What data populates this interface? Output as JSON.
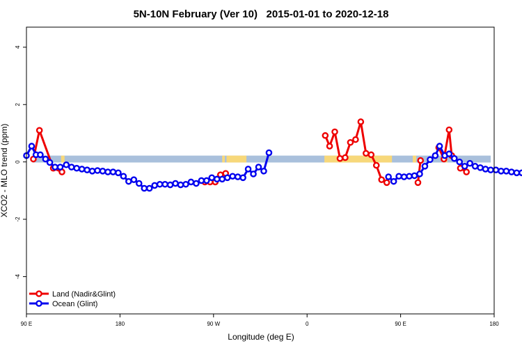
{
  "chart_data": {
    "type": "line",
    "title": "5N-10N February (Ver 10)   2015-01-01 to 2020-12-18",
    "xlabel": "Longitude (deg E)",
    "ylabel": "XCO2 - MLO trend (ppm)",
    "xlim": [
      -90,
      180
    ],
    "ylim": [
      -5.3,
      4.7
    ],
    "x_ticks": [
      -90,
      -36,
      18,
      72,
      126,
      180
    ],
    "x_tick_labels": [
      "90 E",
      "180",
      "90 W",
      "0",
      "90 E",
      "180"
    ],
    "y_ticks": [
      -4,
      -2,
      0,
      2,
      4
    ],
    "y_tick_labels": [
      "-4",
      "-2",
      "0",
      "2",
      "4"
    ],
    "grid": false,
    "legend_position": "bottom-left",
    "colors": {
      "land": "#ee0000",
      "ocean": "#0000ee",
      "ocean_band": "#a9c0dc",
      "land_band": "#f7d87a"
    },
    "land_band_segments": [
      [
        -70,
        -68
      ],
      [
        23,
        24.5
      ],
      [
        25.5,
        37
      ],
      [
        82,
        121
      ],
      [
        133,
        135
      ],
      [
        152,
        153
      ]
    ],
    "series": [
      {
        "name": "Land (Nadir&Glint)",
        "color": "#ee0000",
        "segments": [
          [
            [
              -86,
              0.1
            ],
            [
              -82.5,
              1.1
            ],
            [
              -74.5,
              -0.22
            ],
            [
              -69.5,
              -0.35
            ]
          ],
          [
            [
              13,
              -0.7
            ],
            [
              16,
              -0.7
            ],
            [
              19,
              -0.7
            ],
            [
              22,
              -0.45
            ],
            [
              25,
              -0.4
            ]
          ],
          [
            [
              82.5,
              0.92
            ],
            [
              85,
              0.55
            ],
            [
              88,
              1.05
            ],
            [
              91,
              0.12
            ],
            [
              94,
              0.15
            ],
            [
              97,
              0.68
            ],
            [
              100,
              0.78
            ],
            [
              103,
              1.4
            ],
            [
              106,
              0.3
            ],
            [
              109,
              0.25
            ],
            [
              112,
              -0.12
            ],
            [
              115,
              -0.62
            ],
            [
              118,
              -0.72
            ]
          ],
          [
            [
              136,
              -0.72
            ],
            [
              137.5,
              0.05
            ]
          ],
          [
            [
              148,
              0.5
            ],
            [
              151,
              0.1
            ],
            [
              154,
              1.12
            ],
            [
              155.5,
              0.22
            ]
          ],
          [
            [
              160.5,
              -0.22
            ],
            [
              164,
              -0.35
            ]
          ]
        ]
      },
      {
        "name": "Ocean (Glint)",
        "color": "#0000ee",
        "segments": [
          [
            [
              -90,
              0.22
            ],
            [
              -87,
              0.55
            ],
            [
              -84.5,
              0.25
            ],
            [
              -82,
              0.25
            ],
            [
              -79,
              0.1
            ],
            [
              -76.5,
              -0.02
            ],
            [
              -73.5,
              -0.18
            ],
            [
              -70.5,
              -0.18
            ],
            [
              -67,
              -0.1
            ],
            [
              -64,
              -0.18
            ],
            [
              -61,
              -0.22
            ],
            [
              -58,
              -0.25
            ],
            [
              -55,
              -0.28
            ],
            [
              -52,
              -0.32
            ],
            [
              -49,
              -0.3
            ],
            [
              -46,
              -0.32
            ],
            [
              -43,
              -0.35
            ],
            [
              -40,
              -0.35
            ],
            [
              -37,
              -0.38
            ],
            [
              -34,
              -0.5
            ],
            [
              -31,
              -0.68
            ],
            [
              -28,
              -0.62
            ],
            [
              -25,
              -0.75
            ],
            [
              -22,
              -0.92
            ],
            [
              -19,
              -0.92
            ],
            [
              -16,
              -0.82
            ],
            [
              -13,
              -0.78
            ],
            [
              -10,
              -0.78
            ],
            [
              -7,
              -0.8
            ],
            [
              -4,
              -0.75
            ],
            [
              -1,
              -0.8
            ],
            [
              2,
              -0.78
            ],
            [
              5,
              -0.7
            ],
            [
              8,
              -0.75
            ],
            [
              11,
              -0.65
            ],
            [
              14,
              -0.65
            ],
            [
              17,
              -0.55
            ],
            [
              20,
              -0.6
            ]
          ],
          [
            [
              23,
              -0.6
            ],
            [
              26,
              -0.55
            ],
            [
              29,
              -0.5
            ],
            [
              32,
              -0.52
            ],
            [
              35,
              -0.55
            ],
            [
              38,
              -0.25
            ],
            [
              41,
              -0.42
            ],
            [
              44,
              -0.18
            ],
            [
              47,
              -0.32
            ],
            [
              50,
              0.32
            ]
          ],
          [
            [
              119,
              -0.52
            ],
            [
              122,
              -0.68
            ],
            [
              125,
              -0.5
            ],
            [
              128,
              -0.52
            ],
            [
              131,
              -0.5
            ],
            [
              134,
              -0.48
            ],
            [
              137,
              -0.42
            ],
            [
              140,
              -0.15
            ],
            [
              143,
              0.08
            ],
            [
              146,
              0.22
            ],
            [
              148.5,
              0.55
            ],
            [
              151.5,
              0.22
            ],
            [
              154,
              0.28
            ],
            [
              157,
              0.12
            ],
            [
              160,
              0.0
            ],
            [
              163,
              -0.15
            ],
            [
              166,
              -0.05
            ],
            [
              169,
              -0.15
            ],
            [
              172,
              -0.2
            ],
            [
              175,
              -0.25
            ],
            [
              178,
              -0.28
            ],
            [
              181,
              -0.28
            ],
            [
              184,
              -0.32
            ],
            [
              187,
              -0.32
            ],
            [
              190,
              -0.35
            ],
            [
              193,
              -0.38
            ],
            [
              196,
              -0.38
            ]
          ]
        ]
      }
    ]
  }
}
